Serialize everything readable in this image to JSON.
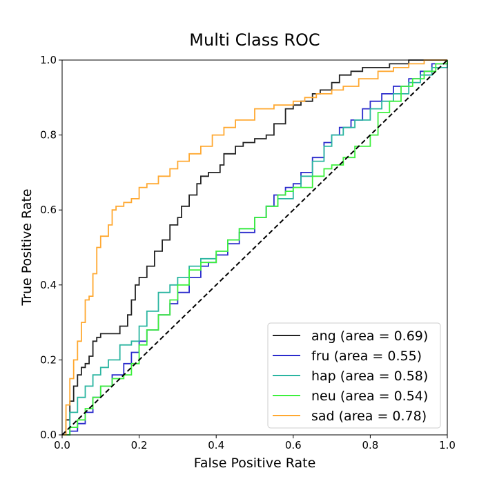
{
  "chart_data": {
    "type": "line",
    "title": "Multi Class ROC",
    "xlabel": "False Positive Rate",
    "ylabel": "True Positive Rate",
    "xlim": [
      0.0,
      1.0
    ],
    "ylim": [
      0.0,
      1.0
    ],
    "xticks": [
      "0.0",
      "0.2",
      "0.4",
      "0.6",
      "0.8",
      "1.0"
    ],
    "yticks": [
      "0.0",
      "0.2",
      "0.4",
      "0.6",
      "0.8",
      "1.0"
    ],
    "grid": false,
    "legend_position": "lower-right",
    "diagonal": {
      "style": "dashed",
      "color": "#000000",
      "x": [
        0,
        1
      ],
      "y": [
        0,
        1
      ]
    },
    "series": [
      {
        "name": "ang (area = 0.69)",
        "color": "#222222",
        "x": [
          0,
          0.01,
          0.02,
          0.03,
          0.04,
          0.05,
          0.06,
          0.07,
          0.08,
          0.09,
          0.1,
          0.12,
          0.15,
          0.17,
          0.18,
          0.19,
          0.2,
          0.22,
          0.24,
          0.26,
          0.28,
          0.3,
          0.31,
          0.33,
          0.35,
          0.36,
          0.38,
          0.41,
          0.42,
          0.45,
          0.47,
          0.5,
          0.53,
          0.55,
          0.58,
          0.6,
          0.62,
          0.65,
          0.67,
          0.7,
          0.72,
          0.75,
          0.78,
          0.8,
          0.85,
          0.88,
          0.9,
          0.95,
          1.0
        ],
        "y": [
          0,
          0.04,
          0.09,
          0.13,
          0.16,
          0.18,
          0.19,
          0.21,
          0.25,
          0.26,
          0.27,
          0.27,
          0.29,
          0.32,
          0.36,
          0.4,
          0.42,
          0.45,
          0.49,
          0.52,
          0.56,
          0.58,
          0.61,
          0.64,
          0.67,
          0.69,
          0.7,
          0.72,
          0.75,
          0.77,
          0.78,
          0.79,
          0.8,
          0.83,
          0.87,
          0.88,
          0.89,
          0.91,
          0.92,
          0.94,
          0.96,
          0.97,
          0.98,
          0.98,
          0.99,
          0.99,
          1.0,
          1.0,
          1.0
        ]
      },
      {
        "name": "fru (area = 0.55)",
        "color": "#2b2bcc",
        "x": [
          0,
          0.02,
          0.04,
          0.06,
          0.08,
          0.1,
          0.13,
          0.16,
          0.18,
          0.2,
          0.22,
          0.25,
          0.28,
          0.3,
          0.33,
          0.36,
          0.38,
          0.4,
          0.43,
          0.46,
          0.5,
          0.53,
          0.55,
          0.58,
          0.6,
          0.62,
          0.65,
          0.68,
          0.7,
          0.72,
          0.75,
          0.78,
          0.8,
          0.83,
          0.86,
          0.9,
          0.93,
          0.96,
          1.0
        ],
        "y": [
          0,
          0.01,
          0.03,
          0.06,
          0.1,
          0.13,
          0.16,
          0.19,
          0.22,
          0.25,
          0.28,
          0.32,
          0.35,
          0.38,
          0.42,
          0.45,
          0.46,
          0.48,
          0.51,
          0.54,
          0.58,
          0.61,
          0.64,
          0.66,
          0.67,
          0.7,
          0.74,
          0.78,
          0.8,
          0.82,
          0.84,
          0.87,
          0.89,
          0.91,
          0.93,
          0.95,
          0.97,
          0.99,
          1.0
        ]
      },
      {
        "name": "hap (area = 0.58)",
        "color": "#2ab5a0",
        "x": [
          0,
          0.02,
          0.04,
          0.06,
          0.08,
          0.1,
          0.12,
          0.15,
          0.18,
          0.2,
          0.22,
          0.25,
          0.28,
          0.3,
          0.33,
          0.36,
          0.4,
          0.43,
          0.46,
          0.5,
          0.53,
          0.56,
          0.6,
          0.62,
          0.65,
          0.68,
          0.7,
          0.73,
          0.76,
          0.8,
          0.83,
          0.86,
          0.9,
          0.93,
          0.96,
          1.0
        ],
        "y": [
          0,
          0.06,
          0.1,
          0.13,
          0.16,
          0.18,
          0.2,
          0.24,
          0.25,
          0.29,
          0.33,
          0.38,
          0.4,
          0.42,
          0.45,
          0.47,
          0.49,
          0.52,
          0.55,
          0.58,
          0.61,
          0.63,
          0.66,
          0.69,
          0.73,
          0.77,
          0.8,
          0.82,
          0.84,
          0.87,
          0.89,
          0.91,
          0.94,
          0.96,
          0.98,
          1.0
        ]
      },
      {
        "name": "neu (area = 0.54)",
        "color": "#3df03d",
        "x": [
          0,
          0.02,
          0.04,
          0.06,
          0.08,
          0.1,
          0.13,
          0.16,
          0.18,
          0.2,
          0.22,
          0.25,
          0.28,
          0.3,
          0.33,
          0.36,
          0.4,
          0.43,
          0.46,
          0.5,
          0.53,
          0.56,
          0.58,
          0.6,
          0.62,
          0.65,
          0.68,
          0.7,
          0.73,
          0.76,
          0.8,
          0.82,
          0.85,
          0.88,
          0.91,
          0.94,
          0.97,
          1.0
        ],
        "y": [
          0,
          0.02,
          0.04,
          0.07,
          0.1,
          0.13,
          0.15,
          0.16,
          0.19,
          0.24,
          0.28,
          0.32,
          0.36,
          0.4,
          0.44,
          0.46,
          0.49,
          0.52,
          0.55,
          0.58,
          0.61,
          0.64,
          0.65,
          0.66,
          0.66,
          0.69,
          0.71,
          0.72,
          0.74,
          0.77,
          0.8,
          0.86,
          0.89,
          0.93,
          0.95,
          0.97,
          0.99,
          1.0
        ]
      },
      {
        "name": "sad (area = 0.78)",
        "color": "#ffa830",
        "x": [
          0,
          0.01,
          0.02,
          0.03,
          0.04,
          0.05,
          0.06,
          0.07,
          0.08,
          0.09,
          0.1,
          0.12,
          0.13,
          0.14,
          0.16,
          0.18,
          0.2,
          0.22,
          0.25,
          0.28,
          0.3,
          0.33,
          0.36,
          0.39,
          0.42,
          0.45,
          0.5,
          0.55,
          0.6,
          0.63,
          0.66,
          0.7,
          0.73,
          0.77,
          0.82,
          0.86,
          0.9,
          0.94,
          0.97,
          1.0
        ],
        "y": [
          0,
          0.08,
          0.15,
          0.2,
          0.25,
          0.3,
          0.36,
          0.37,
          0.43,
          0.5,
          0.53,
          0.56,
          0.6,
          0.61,
          0.62,
          0.63,
          0.66,
          0.67,
          0.69,
          0.71,
          0.73,
          0.75,
          0.77,
          0.8,
          0.82,
          0.84,
          0.87,
          0.88,
          0.89,
          0.9,
          0.91,
          0.92,
          0.93,
          0.95,
          0.97,
          0.98,
          0.99,
          1.0,
          1.0,
          1.0
        ]
      }
    ]
  }
}
